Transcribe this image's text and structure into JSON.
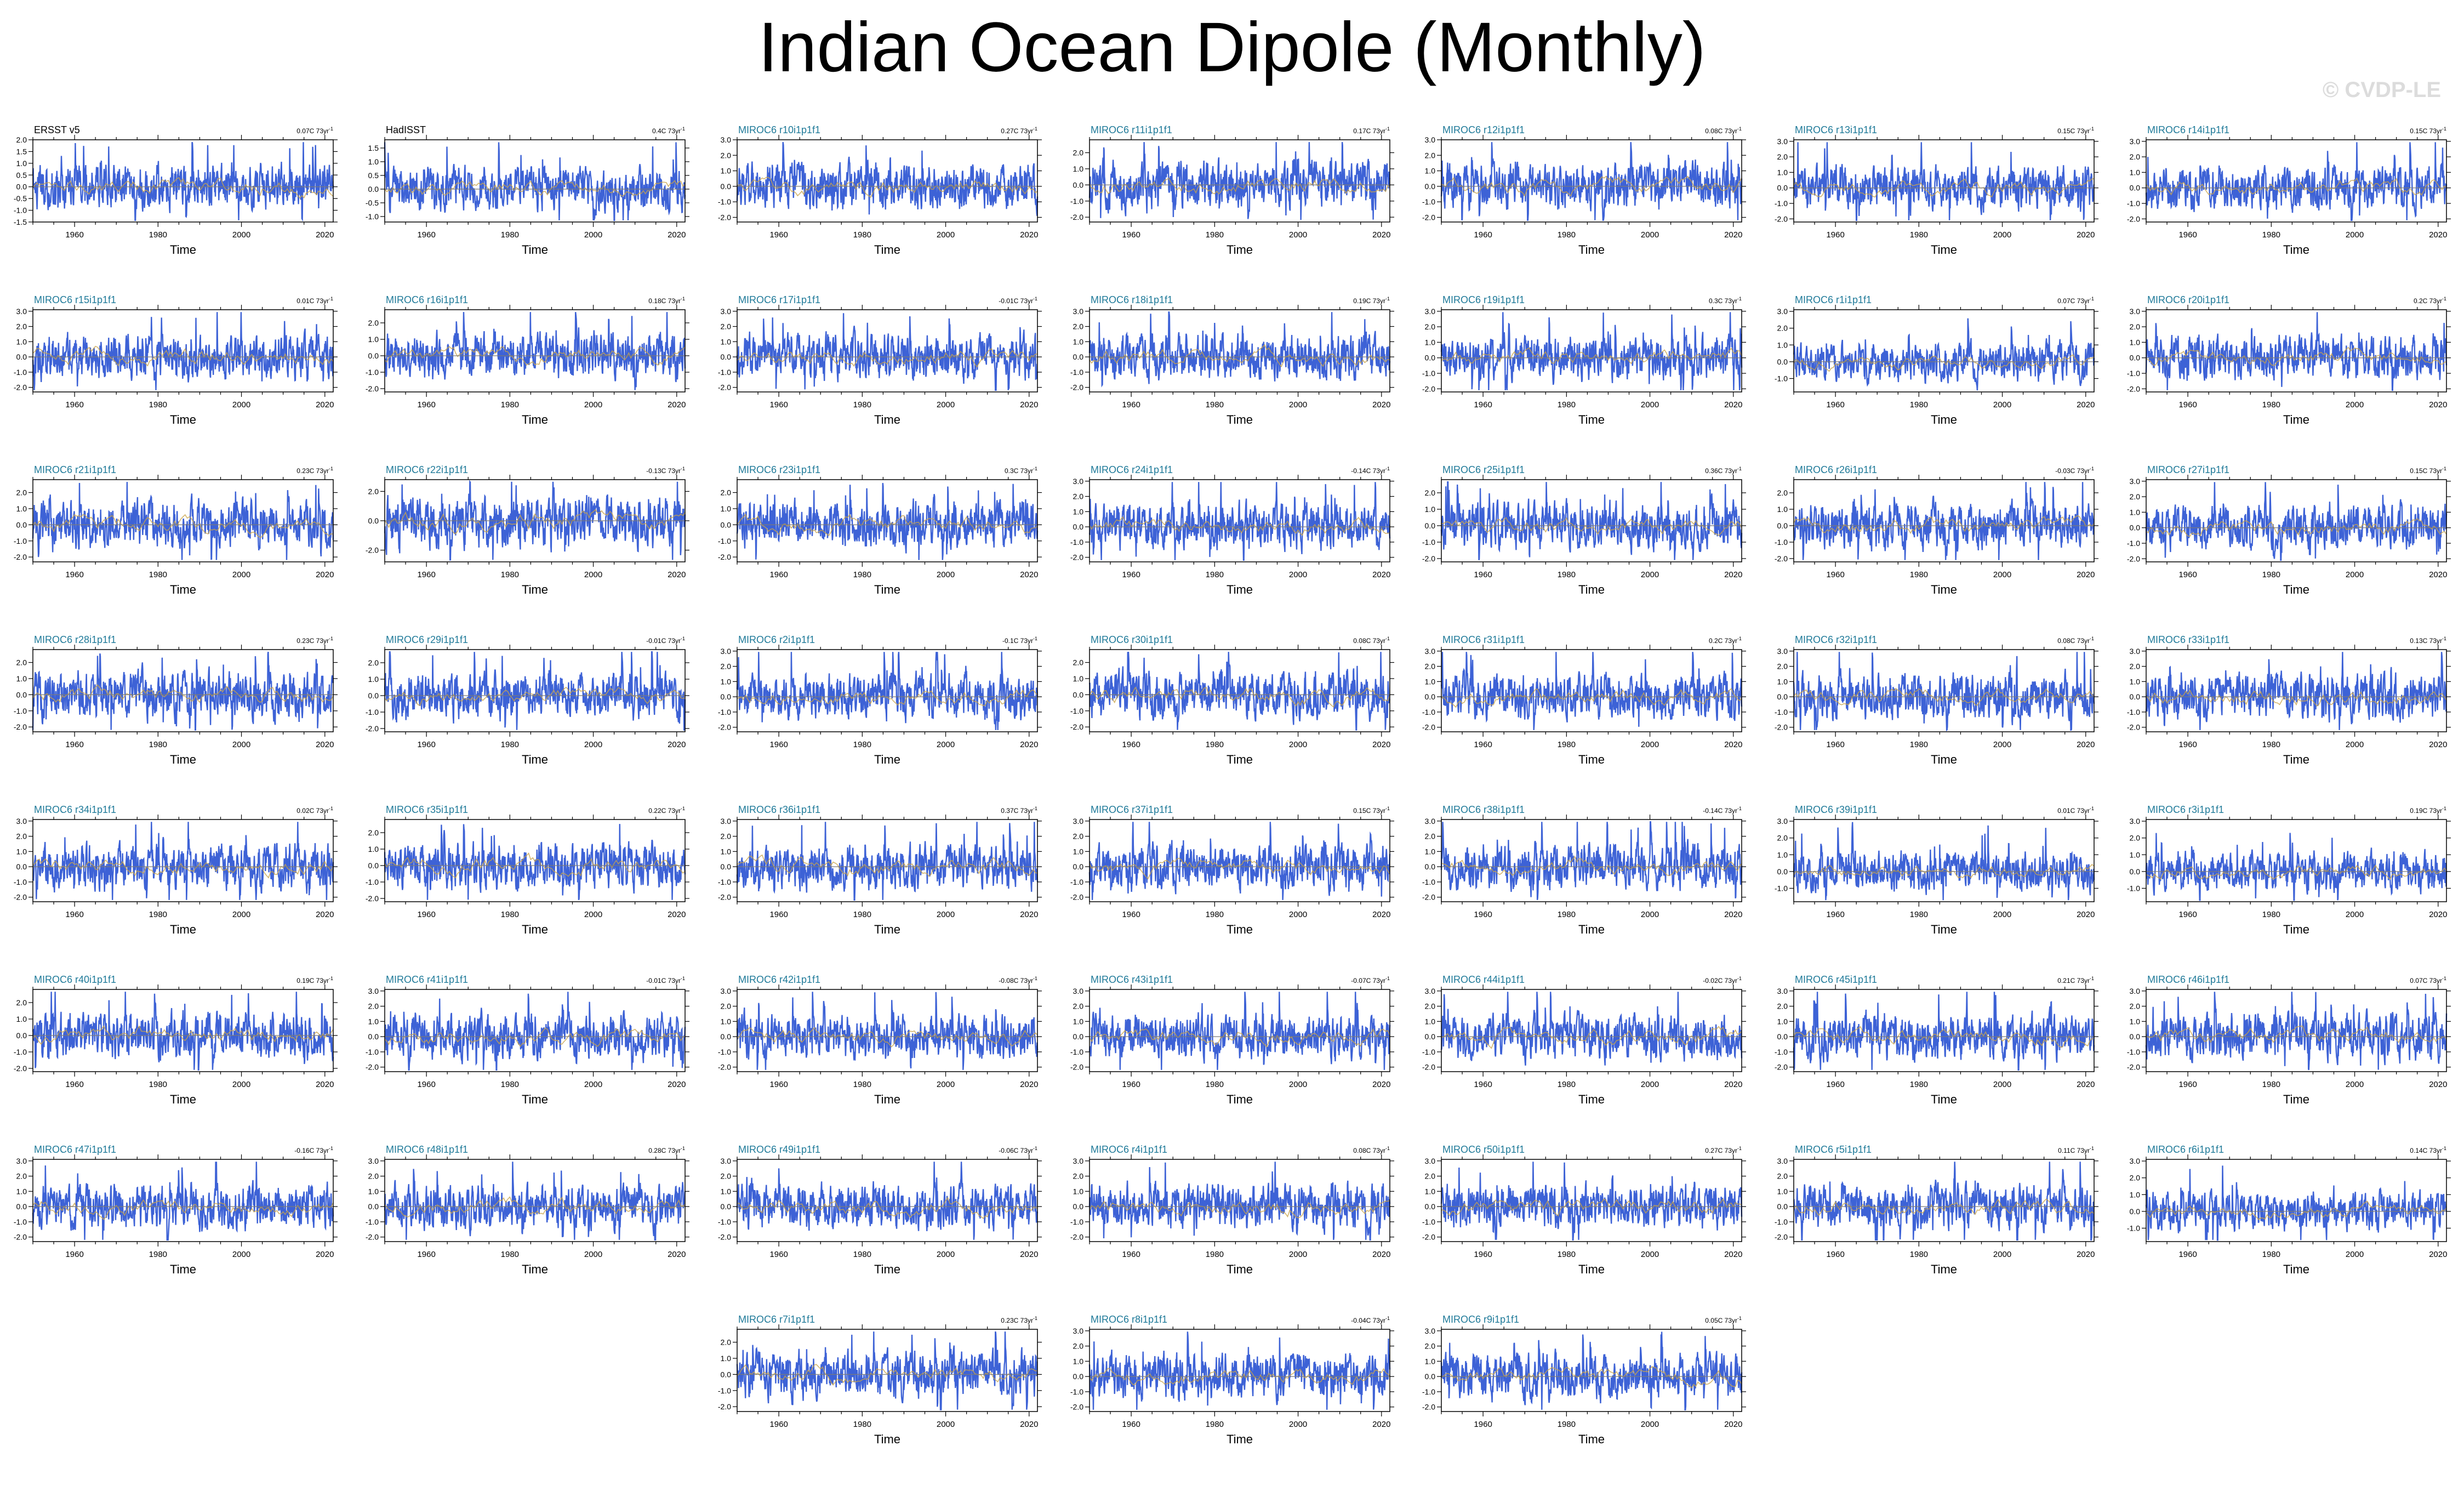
{
  "title": "Indian Ocean Dipole (Monthly)",
  "watermark": "© CVDP-LE",
  "colors": {
    "series": "#3d62d6",
    "trend": "#c9a44a",
    "zero": "#7a7a7a",
    "model_title": "#1f7a99",
    "obs_title": "#000000"
  },
  "chart_data": {
    "type": "line",
    "xlabel": "Time",
    "xlim": [
      1950,
      2022
    ],
    "xticks": [
      "1960",
      "1980",
      "2000",
      "2020"
    ],
    "trend_unit": "C 73yr",
    "trend_exponent": "-1",
    "panels": [
      {
        "name": "ERSST v5",
        "trend": "0.07",
        "obs": true,
        "yticks": [
          "2.0",
          "1.5",
          "1.0",
          "0.5",
          "0.0",
          "-0.5",
          "-1.0",
          "-1.5"
        ],
        "ylim": [
          -1.5,
          2.0
        ]
      },
      {
        "name": "HadISST",
        "trend": "0.4",
        "obs": true,
        "yticks": [
          "1.5",
          "1.0",
          "0.5",
          "0.0",
          "-0.5",
          "-1.0"
        ],
        "ylim": [
          -1.2,
          1.8
        ]
      },
      {
        "name": "MIROC6 r10i1p1f1",
        "trend": "0.27",
        "yticks": [
          "3.0",
          "2.0",
          "1.0",
          "0.0",
          "-1.0",
          "-2.0"
        ],
        "ylim": [
          -2.3,
          3.0
        ]
      },
      {
        "name": "MIROC6 r11i1p1f1",
        "trend": "0.17",
        "yticks": [
          "2.0",
          "1.0",
          "0.0",
          "-1.0",
          "-2.0"
        ],
        "ylim": [
          -2.3,
          2.8
        ]
      },
      {
        "name": "MIROC6 r12i1p1f1",
        "trend": "0.08",
        "yticks": [
          "3.0",
          "2.0",
          "1.0",
          "0.0",
          "-1.0",
          "-2.0"
        ],
        "ylim": [
          -2.3,
          3.0
        ]
      },
      {
        "name": "MIROC6 r13i1p1f1",
        "trend": "0.15",
        "yticks": [
          "3.0",
          "2.0",
          "1.0",
          "0.0",
          "-1.0",
          "-2.0"
        ],
        "ylim": [
          -2.2,
          3.1
        ]
      },
      {
        "name": "MIROC6 r14i1p1f1",
        "trend": "0.15",
        "yticks": [
          "3.0",
          "2.0",
          "1.0",
          "0.0",
          "-1.0",
          "-2.0"
        ],
        "ylim": [
          -2.2,
          3.1
        ]
      },
      {
        "name": "MIROC6 r15i1p1f1",
        "trend": "0.01",
        "yticks": [
          "3.0",
          "2.0",
          "1.0",
          "0.0",
          "-1.0",
          "-2.0"
        ],
        "ylim": [
          -2.3,
          3.1
        ]
      },
      {
        "name": "MIROC6 r16i1p1f1",
        "trend": "0.18",
        "yticks": [
          "2.0",
          "1.0",
          "0.0",
          "-1.0",
          "-2.0"
        ],
        "ylim": [
          -2.2,
          2.8
        ]
      },
      {
        "name": "MIROC6 r17i1p1f1",
        "trend": "-0.01",
        "yticks": [
          "3.0",
          "2.0",
          "1.0",
          "0.0",
          "-1.0",
          "-2.0"
        ],
        "ylim": [
          -2.3,
          3.1
        ]
      },
      {
        "name": "MIROC6 r18i1p1f1",
        "trend": "0.19",
        "yticks": [
          "3.0",
          "2.0",
          "1.0",
          "0.0",
          "-1.0",
          "-2.0"
        ],
        "ylim": [
          -2.3,
          3.1
        ]
      },
      {
        "name": "MIROC6 r19i1p1f1",
        "trend": "0.3",
        "yticks": [
          "3.0",
          "2.0",
          "1.0",
          "0.0",
          "-1.0",
          "-2.0"
        ],
        "ylim": [
          -2.2,
          3.1
        ]
      },
      {
        "name": "MIROC6 r1i1p1f1",
        "trend": "0.07",
        "yticks": [
          "3.0",
          "2.0",
          "1.0",
          "0.0",
          "-1.0"
        ],
        "ylim": [
          -1.8,
          3.1
        ]
      },
      {
        "name": "MIROC6 r20i1p1f1",
        "trend": "0.2",
        "yticks": [
          "3.0",
          "2.0",
          "1.0",
          "0.0",
          "-1.0",
          "-2.0"
        ],
        "ylim": [
          -2.2,
          3.1
        ]
      },
      {
        "name": "MIROC6 r21i1p1f1",
        "trend": "0.23",
        "yticks": [
          "2.0",
          "1.0",
          "0.0",
          "-1.0",
          "-2.0"
        ],
        "ylim": [
          -2.3,
          2.8
        ]
      },
      {
        "name": "MIROC6 r22i1p1f1",
        "trend": "-0.13",
        "yticks": [
          "2.0",
          "0.0",
          "-2.0"
        ],
        "ylim": [
          -2.8,
          2.8
        ]
      },
      {
        "name": "MIROC6 r23i1p1f1",
        "trend": "0.3",
        "yticks": [
          "2.0",
          "1.0",
          "0.0",
          "-1.0",
          "-2.0"
        ],
        "ylim": [
          -2.3,
          2.8
        ]
      },
      {
        "name": "MIROC6 r24i1p1f1",
        "trend": "-0.14",
        "yticks": [
          "3.0",
          "2.0",
          "1.0",
          "0.0",
          "-1.0",
          "-2.0"
        ],
        "ylim": [
          -2.3,
          3.1
        ]
      },
      {
        "name": "MIROC6 r25i1p1f1",
        "trend": "0.36",
        "yticks": [
          "2.0",
          "1.0",
          "0.0",
          "-1.0",
          "-2.0"
        ],
        "ylim": [
          -2.2,
          2.8
        ]
      },
      {
        "name": "MIROC6 r26i1p1f1",
        "trend": "-0.03",
        "yticks": [
          "2.0",
          "1.0",
          "0.0",
          "-1.0",
          "-2.0"
        ],
        "ylim": [
          -2.2,
          2.8
        ]
      },
      {
        "name": "MIROC6 r27i1p1f1",
        "trend": "0.15",
        "yticks": [
          "3.0",
          "2.0",
          "1.0",
          "0.0",
          "-1.0",
          "-2.0"
        ],
        "ylim": [
          -2.2,
          3.1
        ]
      },
      {
        "name": "MIROC6 r28i1p1f1",
        "trend": "0.23",
        "yticks": [
          "2.0",
          "1.0",
          "0.0",
          "-1.0",
          "-2.0"
        ],
        "ylim": [
          -2.3,
          2.8
        ]
      },
      {
        "name": "MIROC6 r29i1p1f1",
        "trend": "-0.01",
        "yticks": [
          "2.0",
          "1.0",
          "0.0",
          "-1.0",
          "-2.0"
        ],
        "ylim": [
          -2.2,
          2.8
        ]
      },
      {
        "name": "MIROC6 r2i1p1f1",
        "trend": "-0.1",
        "yticks": [
          "3.0",
          "2.0",
          "1.0",
          "0.0",
          "-1.0",
          "-2.0"
        ],
        "ylim": [
          -2.3,
          3.1
        ]
      },
      {
        "name": "MIROC6 r30i1p1f1",
        "trend": "0.08",
        "yticks": [
          "2.0",
          "1.0",
          "0.0",
          "-1.0",
          "-2.0"
        ],
        "ylim": [
          -2.3,
          2.8
        ]
      },
      {
        "name": "MIROC6 r31i1p1f1",
        "trend": "0.2",
        "yticks": [
          "3.0",
          "2.0",
          "1.0",
          "0.0",
          "-1.0",
          "-2.0"
        ],
        "ylim": [
          -2.3,
          3.1
        ]
      },
      {
        "name": "MIROC6 r32i1p1f1",
        "trend": "0.08",
        "yticks": [
          "3.0",
          "2.0",
          "1.0",
          "0.0",
          "-1.0",
          "-2.0"
        ],
        "ylim": [
          -2.3,
          3.1
        ]
      },
      {
        "name": "MIROC6 r33i1p1f1",
        "trend": "0.13",
        "yticks": [
          "3.0",
          "2.0",
          "1.0",
          "0.0",
          "-1.0",
          "-2.0"
        ],
        "ylim": [
          -2.3,
          3.1
        ]
      },
      {
        "name": "MIROC6 r34i1p1f1",
        "trend": "0.02",
        "yticks": [
          "3.0",
          "2.0",
          "1.0",
          "0.0",
          "-1.0",
          "-2.0"
        ],
        "ylim": [
          -2.3,
          3.1
        ]
      },
      {
        "name": "MIROC6 r35i1p1f1",
        "trend": "0.22",
        "yticks": [
          "2.0",
          "1.0",
          "0.0",
          "-1.0",
          "-2.0"
        ],
        "ylim": [
          -2.2,
          2.8
        ]
      },
      {
        "name": "MIROC6 r36i1p1f1",
        "trend": "0.37",
        "yticks": [
          "3.0",
          "2.0",
          "1.0",
          "0.0",
          "-1.0",
          "-2.0"
        ],
        "ylim": [
          -2.3,
          3.1
        ]
      },
      {
        "name": "MIROC6 r37i1p1f1",
        "trend": "0.15",
        "yticks": [
          "3.0",
          "2.0",
          "1.0",
          "0.0",
          "-1.0",
          "-2.0"
        ],
        "ylim": [
          -2.3,
          3.1
        ]
      },
      {
        "name": "MIROC6 r38i1p1f1",
        "trend": "-0.14",
        "yticks": [
          "3.0",
          "2.0",
          "1.0",
          "0.0",
          "-1.0",
          "-2.0"
        ],
        "ylim": [
          -2.3,
          3.1
        ]
      },
      {
        "name": "MIROC6 r39i1p1f1",
        "trend": "0.01",
        "yticks": [
          "3.0",
          "2.0",
          "1.0",
          "0.0",
          "-1.0"
        ],
        "ylim": [
          -1.8,
          3.1
        ]
      },
      {
        "name": "MIROC6 r3i1p1f1",
        "trend": "0.19",
        "yticks": [
          "3.0",
          "2.0",
          "1.0",
          "0.0",
          "-1.0"
        ],
        "ylim": [
          -1.8,
          3.1
        ]
      },
      {
        "name": "MIROC6 r40i1p1f1",
        "trend": "0.19",
        "yticks": [
          "2.0",
          "1.0",
          "0.0",
          "-1.0",
          "-2.0"
        ],
        "ylim": [
          -2.2,
          2.8
        ]
      },
      {
        "name": "MIROC6 r41i1p1f1",
        "trend": "-0.01",
        "yticks": [
          "3.0",
          "2.0",
          "1.0",
          "0.0",
          "-1.0",
          "-2.0"
        ],
        "ylim": [
          -2.3,
          3.1
        ]
      },
      {
        "name": "MIROC6 r42i1p1f1",
        "trend": "-0.08",
        "yticks": [
          "3.0",
          "2.0",
          "1.0",
          "0.0",
          "-1.0",
          "-2.0"
        ],
        "ylim": [
          -2.3,
          3.1
        ]
      },
      {
        "name": "MIROC6 r43i1p1f1",
        "trend": "-0.07",
        "yticks": [
          "3.0",
          "2.0",
          "1.0",
          "0.0",
          "-1.0",
          "-2.0"
        ],
        "ylim": [
          -2.3,
          3.1
        ]
      },
      {
        "name": "MIROC6 r44i1p1f1",
        "trend": "-0.02",
        "yticks": [
          "3.0",
          "2.0",
          "1.0",
          "0.0",
          "-1.0",
          "-2.0"
        ],
        "ylim": [
          -2.3,
          3.1
        ]
      },
      {
        "name": "MIROC6 r45i1p1f1",
        "trend": "0.21",
        "yticks": [
          "3.0",
          "2.0",
          "1.0",
          "0.0",
          "-1.0",
          "-2.0"
        ],
        "ylim": [
          -2.3,
          3.1
        ]
      },
      {
        "name": "MIROC6 r46i1p1f1",
        "trend": "0.07",
        "yticks": [
          "3.0",
          "2.0",
          "1.0",
          "0.0",
          "-1.0",
          "-2.0"
        ],
        "ylim": [
          -2.3,
          3.1
        ]
      },
      {
        "name": "MIROC6 r47i1p1f1",
        "trend": "-0.16",
        "yticks": [
          "3.0",
          "2.0",
          "1.0",
          "0.0",
          "-1.0",
          "-2.0"
        ],
        "ylim": [
          -2.3,
          3.1
        ]
      },
      {
        "name": "MIROC6 r48i1p1f1",
        "trend": "0.28",
        "yticks": [
          "3.0",
          "2.0",
          "1.0",
          "0.0",
          "-1.0",
          "-2.0"
        ],
        "ylim": [
          -2.3,
          3.1
        ]
      },
      {
        "name": "MIROC6 r49i1p1f1",
        "trend": "-0.06",
        "yticks": [
          "3.0",
          "2.0",
          "1.0",
          "0.0",
          "-1.0",
          "-2.0"
        ],
        "ylim": [
          -2.3,
          3.1
        ]
      },
      {
        "name": "MIROC6 r4i1p1f1",
        "trend": "0.08",
        "yticks": [
          "3.0",
          "2.0",
          "1.0",
          "0.0",
          "-1.0",
          "-2.0"
        ],
        "ylim": [
          -2.3,
          3.1
        ]
      },
      {
        "name": "MIROC6 r50i1p1f1",
        "trend": "0.27",
        "yticks": [
          "3.0",
          "2.0",
          "1.0",
          "0.0",
          "-1.0",
          "-2.0"
        ],
        "ylim": [
          -2.3,
          3.1
        ]
      },
      {
        "name": "MIROC6 r5i1p1f1",
        "trend": "0.11",
        "yticks": [
          "3.0",
          "2.0",
          "1.0",
          "0.0",
          "-1.0",
          "-2.0"
        ],
        "ylim": [
          -2.3,
          3.1
        ]
      },
      {
        "name": "MIROC6 r6i1p1f1",
        "trend": "0.14",
        "yticks": [
          "3.0",
          "2.0",
          "1.0",
          "0.0",
          "-1.0"
        ],
        "ylim": [
          -1.8,
          3.1
        ]
      },
      {
        "name": "MIROC6 r7i1p1f1",
        "trend": "0.23",
        "yticks": [
          "2.0",
          "1.0",
          "0.0",
          "-1.0",
          "-2.0"
        ],
        "ylim": [
          -2.3,
          2.8
        ]
      },
      {
        "name": "MIROC6 r8i1p1f1",
        "trend": "-0.04",
        "yticks": [
          "3.0",
          "2.0",
          "1.0",
          "0.0",
          "-1.0",
          "-2.0"
        ],
        "ylim": [
          -2.3,
          3.1
        ]
      },
      {
        "name": "MIROC6 r9i1p1f1",
        "trend": "0.05",
        "yticks": [
          "3.0",
          "2.0",
          "1.0",
          "0.0",
          "-1.0",
          "-2.0"
        ],
        "ylim": [
          -2.3,
          3.1
        ]
      }
    ]
  }
}
